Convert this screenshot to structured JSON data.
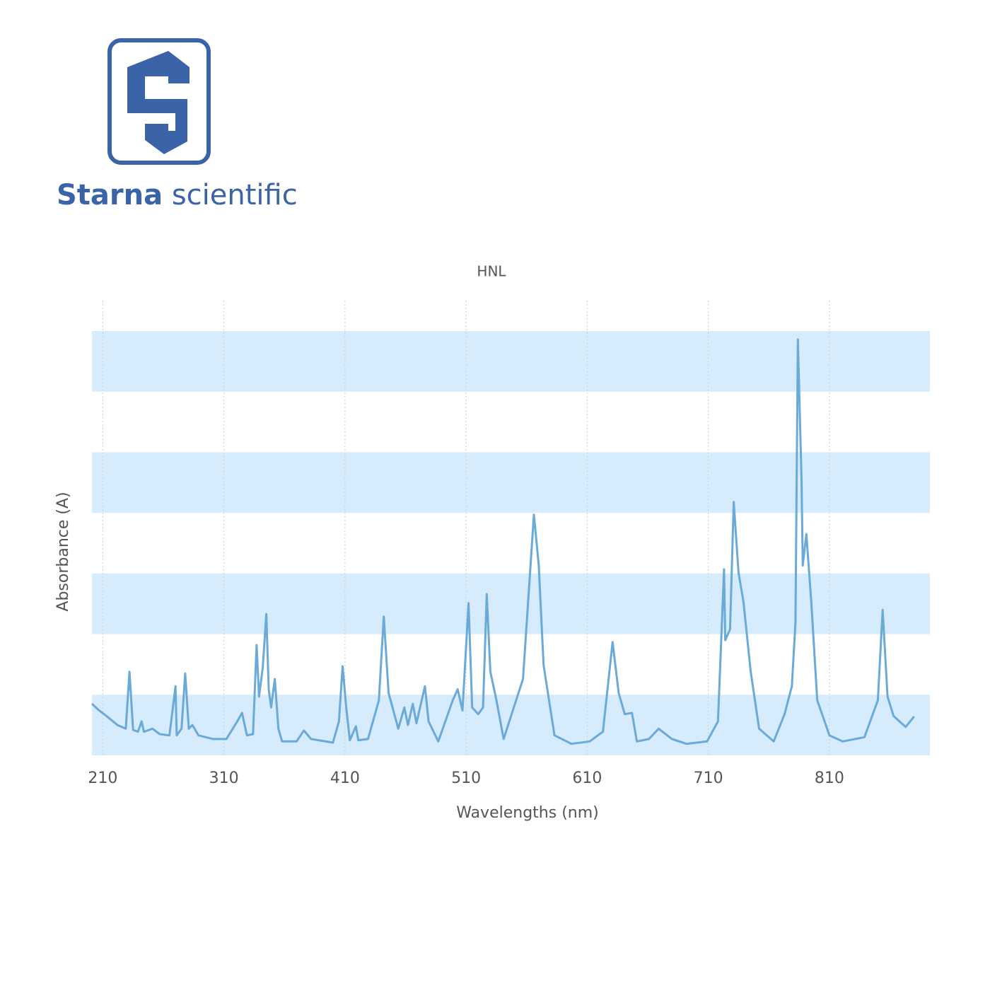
{
  "logo": {
    "brand": "Starna",
    "suffix": "scientific"
  },
  "chart_data": {
    "type": "line",
    "title": "HNL",
    "x_label": "Wavelengths (nm)",
    "y_label": "Absorbance (A)",
    "color": "#6aaad8",
    "band_color": "#d6ebfb",
    "xlim": [
      201,
      893
    ],
    "xticks": [
      210,
      310,
      410,
      510,
      610,
      710,
      810
    ],
    "ylim": [
      0,
      7
    ],
    "bands": [
      [
        0,
        1
      ],
      [
        2,
        3
      ],
      [
        4,
        5
      ],
      [
        6,
        7
      ]
    ],
    "grid": true,
    "x": [
      201,
      207,
      213,
      222,
      229,
      232,
      235,
      239,
      242,
      244,
      251,
      257,
      265,
      270,
      271,
      275,
      278,
      281,
      284,
      289,
      301,
      312,
      321,
      325,
      329,
      334,
      337,
      339,
      342,
      345,
      347,
      349,
      352,
      355,
      358,
      370,
      376,
      382,
      400,
      405,
      408,
      411,
      414,
      419,
      421,
      429,
      438,
      442,
      446,
      454,
      459,
      462,
      466,
      469,
      476,
      479,
      487,
      499,
      503,
      507,
      512,
      515,
      520,
      524,
      527,
      530,
      535,
      541,
      557,
      566,
      570,
      574,
      583,
      597,
      612,
      623,
      631,
      636,
      641,
      647,
      651,
      661,
      669,
      680,
      692,
      709,
      718,
      723,
      724,
      728,
      731,
      735,
      739,
      745,
      752,
      764,
      773,
      779,
      782,
      784,
      787,
      788,
      791,
      795,
      800,
      810,
      821,
      839,
      850,
      854,
      858,
      863,
      869,
      873,
      880
    ],
    "values": [
      0.85,
      0.74,
      0.65,
      0.5,
      0.44,
      1.38,
      0.42,
      0.39,
      0.56,
      0.39,
      0.44,
      0.35,
      0.33,
      1.14,
      0.33,
      0.44,
      1.35,
      0.44,
      0.5,
      0.33,
      0.27,
      0.27,
      0.56,
      0.7,
      0.33,
      0.35,
      1.82,
      0.97,
      1.44,
      2.33,
      1.09,
      0.79,
      1.26,
      0.44,
      0.23,
      0.23,
      0.41,
      0.27,
      0.21,
      0.56,
      1.47,
      0.79,
      0.25,
      0.48,
      0.25,
      0.27,
      0.91,
      2.29,
      1.03,
      0.44,
      0.79,
      0.5,
      0.85,
      0.53,
      1.14,
      0.56,
      0.23,
      0.91,
      1.09,
      0.74,
      2.51,
      0.79,
      0.68,
      0.79,
      2.66,
      1.38,
      0.91,
      0.27,
      1.26,
      3.97,
      3.13,
      1.49,
      0.33,
      0.19,
      0.23,
      0.39,
      1.87,
      1.03,
      0.68,
      0.7,
      0.23,
      0.27,
      0.44,
      0.27,
      0.19,
      0.23,
      0.56,
      3.07,
      1.9,
      2.08,
      4.18,
      3.01,
      2.54,
      1.38,
      0.44,
      0.23,
      0.68,
      1.14,
      2.19,
      6.86,
      4.53,
      3.13,
      3.65,
      2.54,
      0.91,
      0.33,
      0.23,
      0.3,
      0.91,
      2.4,
      0.97,
      0.65,
      0.54,
      0.47,
      0.64
    ]
  }
}
